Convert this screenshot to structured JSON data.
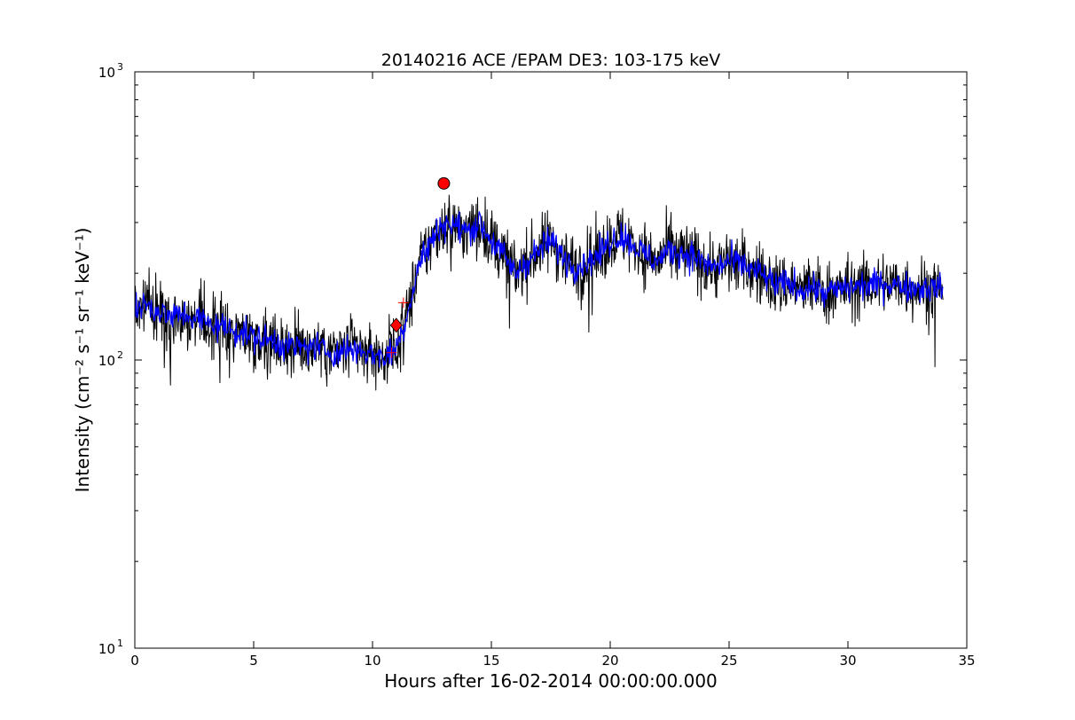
{
  "chart_data": {
    "type": "line",
    "title": "20140216 ACE /EPAM DE3: 103-175 keV",
    "xlabel": "Hours after 16-02-2014 00:00:00.000",
    "ylabel": "Intensity (cm⁻² s⁻¹ sr⁻¹ keV⁻¹)",
    "xlim": [
      0,
      35
    ],
    "ylim": [
      10,
      1000
    ],
    "yscale": "log",
    "grid": false,
    "x_ticks": [
      "0",
      "5",
      "10",
      "15",
      "20",
      "25",
      "30",
      "35"
    ],
    "y_ticks": [
      "10",
      "10",
      "10"
    ],
    "y_tick_exponents": [
      "1",
      "2",
      "3"
    ],
    "series": [
      {
        "color": "#000000",
        "x": [
          0,
          0.5,
          1,
          1.5,
          2,
          2.5,
          3,
          3.5,
          4,
          4.5,
          5,
          5.5,
          6,
          6.5,
          7,
          7.5,
          8,
          8.5,
          9,
          9.5,
          10,
          10.5,
          11,
          11.3,
          11.6,
          12,
          12.5,
          13,
          13.5,
          14,
          14.5,
          15,
          15.5,
          16,
          16.5,
          17,
          17.5,
          18,
          18.5,
          19,
          19.5,
          20,
          20.5,
          21,
          21.5,
          22,
          22.5,
          23,
          23.5,
          24,
          24.5,
          25,
          25.5,
          26,
          26.5,
          27,
          27.5,
          28,
          28.5,
          29,
          29.5,
          30,
          30.5,
          31,
          31.5,
          32,
          32.5,
          33,
          33.5,
          34
        ],
        "y": [
          150,
          155,
          148,
          140,
          145,
          140,
          135,
          132,
          128,
          125,
          120,
          118,
          115,
          112,
          110,
          112,
          108,
          105,
          110,
          108,
          105,
          102,
          110,
          130,
          160,
          220,
          260,
          300,
          290,
          280,
          300,
          260,
          230,
          200,
          220,
          240,
          260,
          230,
          210,
          220,
          230,
          260,
          270,
          250,
          230,
          220,
          240,
          235,
          230,
          215,
          210,
          220,
          215,
          205,
          195,
          180,
          185,
          175,
          180,
          170,
          175,
          178,
          180,
          182,
          185,
          183,
          180,
          178,
          180,
          175
        ]
      },
      {
        "color": "#0000ff",
        "x": [
          0,
          0.5,
          1,
          1.5,
          2,
          2.5,
          3,
          3.5,
          4,
          4.5,
          5,
          5.5,
          6,
          6.5,
          7,
          7.5,
          8,
          8.5,
          9,
          9.5,
          10,
          10.5,
          11,
          11.3,
          11.6,
          12,
          12.5,
          13,
          13.5,
          14,
          14.5,
          15,
          15.5,
          16,
          16.5,
          17,
          17.5,
          18,
          18.5,
          19,
          19.5,
          20,
          20.5,
          21,
          21.5,
          22,
          22.5,
          23,
          23.5,
          24,
          24.5,
          25,
          25.5,
          26,
          26.5,
          27,
          27.5,
          28,
          28.5,
          29,
          29.5,
          30,
          30.5,
          31,
          31.5,
          32,
          32.5,
          33,
          33.5,
          34
        ],
        "y": [
          150,
          155,
          148,
          140,
          145,
          140,
          135,
          132,
          128,
          125,
          120,
          118,
          115,
          112,
          110,
          112,
          108,
          105,
          110,
          108,
          105,
          102,
          110,
          130,
          160,
          220,
          260,
          300,
          290,
          280,
          300,
          260,
          230,
          200,
          220,
          240,
          260,
          230,
          210,
          220,
          230,
          260,
          270,
          250,
          230,
          220,
          240,
          235,
          230,
          215,
          210,
          220,
          215,
          205,
          195,
          180,
          185,
          175,
          180,
          170,
          175,
          178,
          180,
          182,
          185,
          183,
          180,
          178,
          180,
          175
        ]
      }
    ],
    "markers": [
      {
        "shape": "circle",
        "x": 13.0,
        "y": 410,
        "color": "#ff0000"
      },
      {
        "shape": "diamond",
        "x": 11.0,
        "y": 132,
        "color": "#ff0000"
      },
      {
        "shape": "plus",
        "x": 10.8,
        "y": 106,
        "color": "#ff0000"
      },
      {
        "shape": "plus",
        "x": 11.3,
        "y": 158,
        "color": "#ff0000"
      }
    ]
  }
}
